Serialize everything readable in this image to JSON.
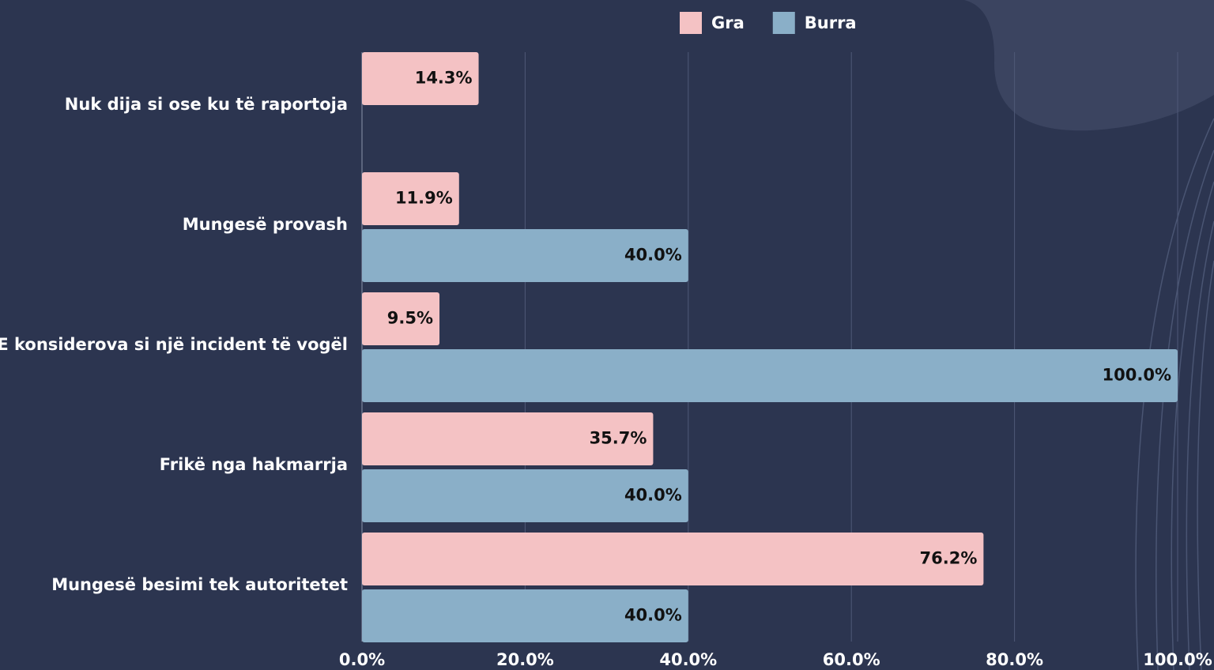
{
  "chart_data": {
    "type": "barh",
    "categories": [
      "Nuk dija si ose ku të raportoja",
      "Mungesë provash",
      "E konsiderova si një incident të vogël",
      "Frikë nga hakmarrja",
      "Mungesë besimi tek autoritetet"
    ],
    "series": [
      {
        "name": "Gra",
        "color": "#f4c2c4",
        "values": [
          14.3,
          11.9,
          9.5,
          35.7,
          76.2
        ],
        "value_labels": [
          "14.3%",
          "11.9%",
          "9.5%",
          "35.7%",
          "76.2%"
        ]
      },
      {
        "name": "Burra",
        "color": "#8aafc8",
        "values": [
          null,
          40.0,
          100.0,
          40.0,
          40.0
        ],
        "value_labels": [
          null,
          "40.0%",
          "100.0%",
          "40.0%",
          "40.0%"
        ]
      }
    ],
    "xlim": [
      0,
      100
    ],
    "xticks": [
      {
        "value": 0,
        "label": "0.0%"
      },
      {
        "value": 20,
        "label": "20.0%"
      },
      {
        "value": 40,
        "label": "40.0%"
      },
      {
        "value": 60,
        "label": "60.0%"
      },
      {
        "value": 80,
        "label": "80.0%"
      },
      {
        "value": 100,
        "label": "100.0%"
      }
    ],
    "grid": true,
    "legend": "top"
  }
}
